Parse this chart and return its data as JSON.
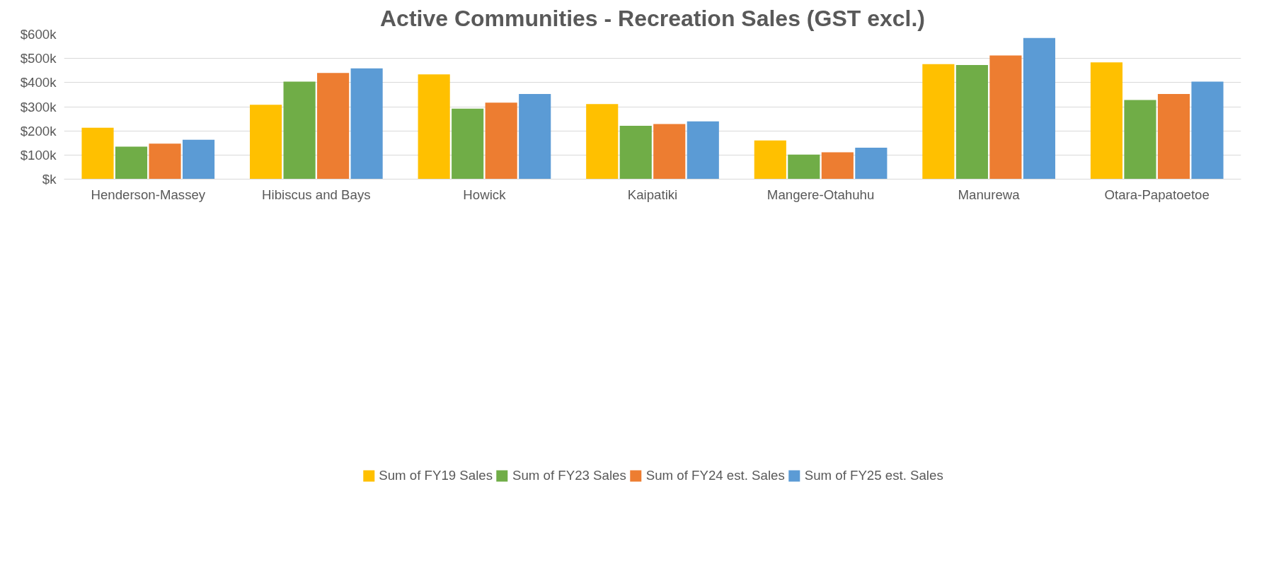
{
  "chart_data": {
    "type": "bar",
    "title": "Active Communities - Recreation Sales (GST excl.)",
    "categories": [
      "Henderson-Massey",
      "Hibiscus and Bays",
      "Howick",
      "Kaipatiki",
      "Mangere-Otahuhu",
      "Manurewa",
      "Otara-Papatoetoe"
    ],
    "series": [
      {
        "name": "Sum of FY19 Sales",
        "color": "#ffc000",
        "values": [
          213,
          308,
          434,
          311,
          160,
          476,
          484
        ]
      },
      {
        "name": "Sum of FY23 Sales",
        "color": "#70ad47",
        "values": [
          135,
          404,
          292,
          221,
          102,
          473,
          328
        ]
      },
      {
        "name": "Sum of FY24 est. Sales",
        "color": "#ed7d31",
        "values": [
          147,
          440,
          317,
          228,
          111,
          512,
          353
        ]
      },
      {
        "name": "Sum of FY25 est. Sales",
        "color": "#5b9bd5",
        "values": [
          163,
          459,
          353,
          239,
          130,
          585,
          404
        ]
      }
    ],
    "ylim": [
      0,
      600
    ],
    "yticks": [
      {
        "value": 0,
        "label": "$k"
      },
      {
        "value": 100,
        "label": "$100k"
      },
      {
        "value": 200,
        "label": "$200k"
      },
      {
        "value": 300,
        "label": "$300k"
      },
      {
        "value": 400,
        "label": "$400k"
      },
      {
        "value": 500,
        "label": "$500k"
      },
      {
        "value": 600,
        "label": "$600k"
      }
    ],
    "grid": "y",
    "legend": "bottom"
  }
}
